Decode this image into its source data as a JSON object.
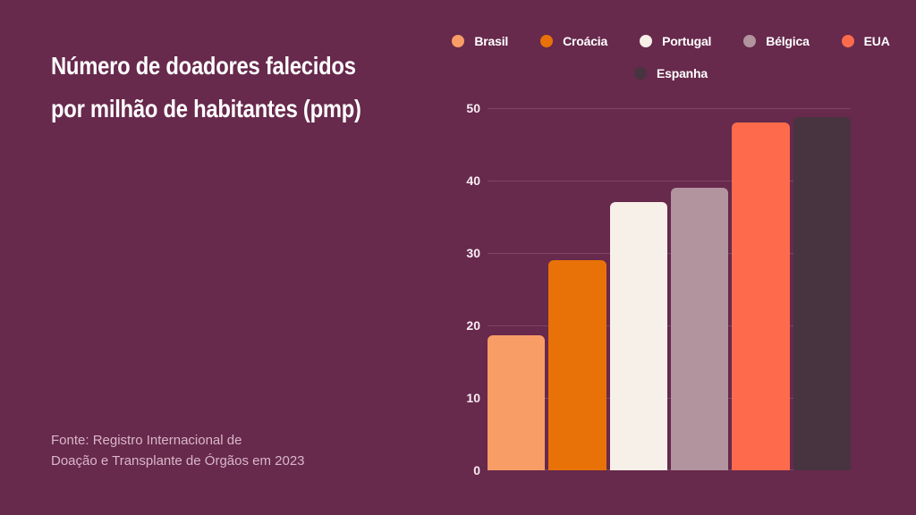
{
  "page": {
    "background": "#67294C"
  },
  "title": {
    "line1": "Número de doadores falecidos",
    "line2": "por milhão de habitantes (pmp)"
  },
  "source": {
    "line1": "Fonte: Registro Internacional de",
    "line2": "Doação e Transplante de Órgãos em 2023"
  },
  "chart_data": {
    "type": "bar",
    "title": "Número de doadores falecidos por milhão de habitantes (pmp)",
    "categories": [
      "Brasil",
      "Croácia",
      "Portugal",
      "Bélgica",
      "EUA",
      "Espanha"
    ],
    "values": [
      18.6,
      29,
      37,
      39,
      48,
      48.8
    ],
    "colors": [
      "#F99D66",
      "#E87207",
      "#F7F0E9",
      "#B2949F",
      "#FD6B4C",
      "#473440"
    ],
    "ylim": [
      0,
      50
    ],
    "yticks": [
      0,
      10,
      20,
      30,
      40,
      50
    ],
    "grid": true,
    "gridline_color": "rgba(255,255,255,0.14)",
    "tick_color": "#F7EDF3",
    "legend_position": "top",
    "legend_rows": [
      [
        0,
        1,
        2,
        3,
        4
      ],
      [
        5
      ]
    ],
    "xlabel": "",
    "ylabel": ""
  }
}
